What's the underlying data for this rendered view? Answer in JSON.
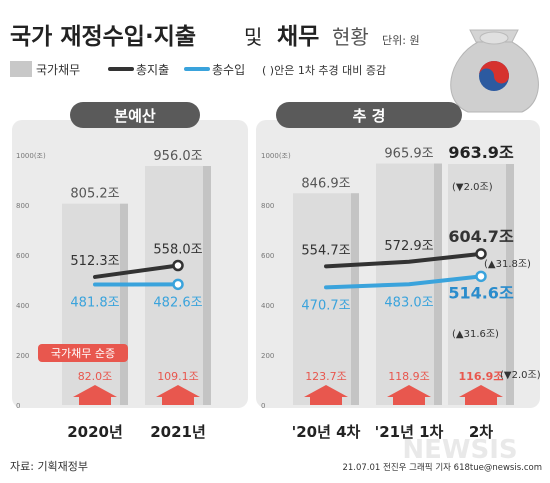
{
  "header": {
    "title_main": "국가 재정수입·지출",
    "title_connector": "및",
    "title_bold2": "채무",
    "title_light": "현황",
    "unit": "단위: 원"
  },
  "legend": {
    "debt": "국가채무",
    "expenditure": "총지출",
    "revenue": "총수입",
    "note": "( )안은 1차 추경 대비 증감"
  },
  "groups": {
    "left": "본예산",
    "right": "추 경"
  },
  "annotation": {
    "debt_increase_label": "국가채무 순증"
  },
  "colors": {
    "debt_bar": "#dcdcdc",
    "expenditure": "#333333",
    "revenue": "#3aa3dc",
    "increase": "#e8574e",
    "header_pill": "#5a5a5a",
    "panel_bg": "#ebebeb"
  },
  "chart_data": {
    "type": "bar",
    "ylim": [
      0,
      1000
    ],
    "ytick_labels": [
      "0",
      "200",
      "400",
      "600",
      "800",
      "1000(조)"
    ],
    "categories": [
      "2020년",
      "2021년",
      "'20년 4차",
      "'21년 1차",
      "2차"
    ],
    "series": [
      {
        "name": "국가채무",
        "values": [
          805.2,
          956.0,
          846.9,
          965.9,
          963.9
        ],
        "labels": [
          "805.2조",
          "956.0조",
          "846.9조",
          "965.9조",
          "963.9조"
        ]
      },
      {
        "name": "총지출",
        "values": [
          512.3,
          558.0,
          554.7,
          572.9,
          604.7
        ],
        "labels": [
          "512.3조",
          "558.0조",
          "554.7조",
          "572.9조",
          "604.7조"
        ]
      },
      {
        "name": "총수입",
        "values": [
          481.8,
          482.6,
          470.7,
          483.0,
          514.6
        ],
        "labels": [
          "481.8조",
          "482.6조",
          "470.7조",
          "483.0조",
          "514.6조"
        ]
      },
      {
        "name": "국가채무 순증",
        "values": [
          82.0,
          109.1,
          123.7,
          118.9,
          116.9
        ],
        "labels": [
          "82.0조",
          "109.1조",
          "123.7조",
          "118.9조",
          "116.9조"
        ]
      }
    ],
    "changes_vs_first_supplementary": {
      "debt": "(▼2.0조)",
      "expenditure": "(▲31.8조)",
      "revenue": "(▲31.6조)",
      "debt_increase": "(▼2.0조)"
    }
  },
  "footer": {
    "source": "자료: 기획재정부",
    "credit": "21.07.01  전진우 그래픽 기자  618tue@newsis.com",
    "logo": "NEWSIS"
  }
}
